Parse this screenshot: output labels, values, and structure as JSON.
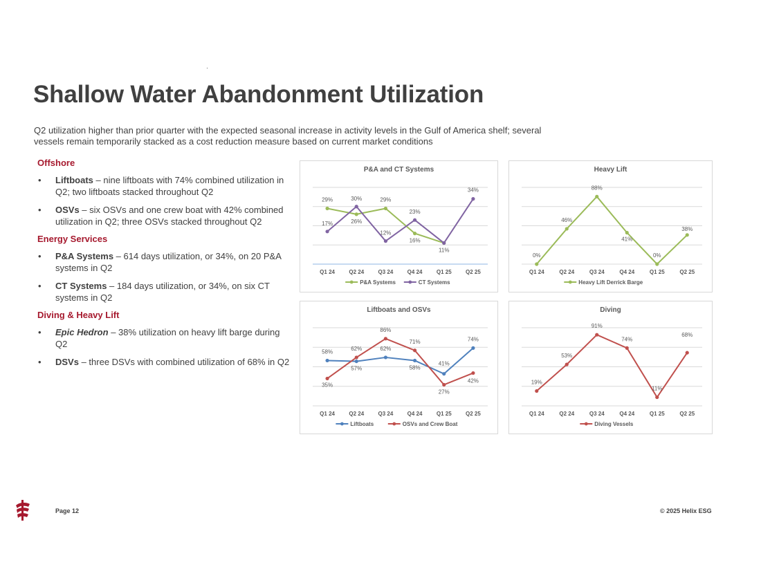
{
  "page": {
    "title": "Shallow Water Abandonment Utilization",
    "subtitle": "Q2 utilization higher than prior quarter with the expected seasonal increase in activity levels in the Gulf of America shelf; several vessels remain temporarily stacked as a cost reduction measure based on current market conditions",
    "page_number": "Page 12",
    "copyright": "© 2025 Helix ESG"
  },
  "sections": [
    {
      "heading": "Offshore",
      "bullets": [
        {
          "lead": "Liftboats",
          "italic": false,
          "text": " – nine liftboats with 74% combined utilization in Q2; two liftboats stacked throughout Q2"
        },
        {
          "lead": "OSVs",
          "italic": false,
          "text": " – six OSVs and one crew boat with 42% combined utilization in Q2; three OSVs stacked throughout Q2"
        }
      ]
    },
    {
      "heading": "Energy Services",
      "bullets": [
        {
          "lead": "P&A Systems",
          "italic": false,
          "text": " – 614 days utilization, or 34%, on 20 P&A systems in Q2"
        },
        {
          "lead": "CT Systems",
          "italic": false,
          "text": " – 184 days utilization, or 34%, on six CT systems in Q2"
        }
      ]
    },
    {
      "heading": "Diving & Heavy Lift",
      "bullets": [
        {
          "lead": "Epic Hedron",
          "italic": true,
          "text": " – 38% utilization on heavy lift barge during Q2"
        },
        {
          "lead": "DSVs",
          "italic": false,
          "text": " – three DSVs with combined utilization of 68% in Q2"
        }
      ]
    }
  ],
  "bullet_char": "•",
  "chart_data": [
    {
      "type": "line",
      "title": "P&A and CT Systems",
      "categories": [
        "Q1 24",
        "Q2 24",
        "Q3 24",
        "Q4 24",
        "Q1 25",
        "Q2 25"
      ],
      "ylim": [
        0,
        40
      ],
      "grid": true,
      "legend": "bottom",
      "series": [
        {
          "name": "P&A Systems",
          "color": "#9bbb59",
          "values": [
            29,
            26,
            29,
            16,
            11,
            null
          ],
          "labels": [
            "29%",
            "26%",
            "29%",
            "16%",
            "",
            ""
          ]
        },
        {
          "name": "CT Systems",
          "color": "#8064a2",
          "values": [
            17,
            30,
            12,
            23,
            11,
            34
          ],
          "labels": [
            "17%",
            "30%",
            "12%",
            "23%",
            "11%",
            "34%"
          ]
        }
      ]
    },
    {
      "type": "line",
      "title": "Heavy Lift",
      "categories": [
        "Q1 24",
        "Q2 24",
        "Q3 24",
        "Q4 24",
        "Q1 25",
        "Q2 25"
      ],
      "ylim": [
        0,
        100
      ],
      "grid": true,
      "legend": "bottom",
      "series": [
        {
          "name": "Heavy Lift Derrick Barge",
          "color": "#9bbb59",
          "values": [
            0,
            46,
            88,
            41,
            0,
            38
          ],
          "labels": [
            "0%",
            "46%",
            "88%",
            "41%",
            "0%",
            "38%"
          ]
        }
      ]
    },
    {
      "type": "line",
      "title": "Liftboats and OSVs",
      "categories": [
        "Q1 24",
        "Q2 24",
        "Q3 24",
        "Q4 24",
        "Q1 25",
        "Q2 25"
      ],
      "ylim": [
        0,
        100
      ],
      "grid": true,
      "legend": "bottom",
      "series": [
        {
          "name": "Liftboats",
          "color": "#4f81bd",
          "values": [
            58,
            57,
            62,
            58,
            41,
            74
          ],
          "labels": [
            "58%",
            "57%",
            "62%",
            "58%",
            "41%",
            "74%"
          ]
        },
        {
          "name": "OSVs and Crew Boat",
          "color": "#c0504d",
          "values": [
            35,
            62,
            86,
            71,
            27,
            42
          ],
          "labels": [
            "35%",
            "62%",
            "86%",
            "71%",
            "27%",
            "42%"
          ]
        }
      ]
    },
    {
      "type": "line",
      "title": "Diving",
      "categories": [
        "Q1 24",
        "Q2 24",
        "Q3 24",
        "Q4 24",
        "Q1 25",
        "Q2 25"
      ],
      "ylim": [
        0,
        100
      ],
      "grid": true,
      "legend": "bottom",
      "series": [
        {
          "name": "Diving Vessels",
          "color": "#c0504d",
          "values": [
            19,
            53,
            91,
            74,
            11,
            68
          ],
          "labels": [
            "19%",
            "53%",
            "91%",
            "74%",
            "11%",
            "68%"
          ]
        }
      ]
    }
  ]
}
